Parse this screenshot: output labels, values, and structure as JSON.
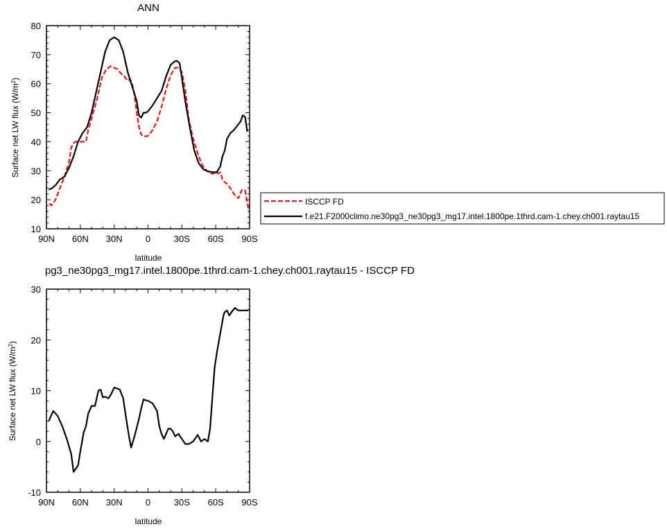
{
  "top_title": "ANN",
  "bottom_title": "pg3_ne30pg3_mg17.intel.1800pe.1thrd.cam-1.chey.ch001.raytau15 - ISCCP FD",
  "legend": {
    "obs_label": "ISCCP FD",
    "model_label": "f.e21.F2000climo.ne30pg3_ne30pg3_mg17.intel.1800pe.1thrd.cam-1.chey.ch001.raytau15"
  },
  "colors": {
    "obs": "#e8141a",
    "model": "#000000"
  },
  "chart_data": [
    {
      "type": "line",
      "title": "ANN",
      "xlabel": "latitude",
      "ylabel": "Surface net LW flux (W/m²)",
      "xlim": [
        90,
        -90
      ],
      "ylim": [
        10,
        80
      ],
      "xticks": [
        90,
        60,
        30,
        0,
        -30,
        -60,
        -90
      ],
      "xtick_labels": [
        "90N",
        "60N",
        "30N",
        "0",
        "30S",
        "60S",
        "90S"
      ],
      "yticks": [
        10,
        20,
        30,
        40,
        50,
        60,
        70,
        80
      ],
      "ytick_labels": [
        "10",
        "20",
        "30",
        "40",
        "50",
        "60",
        "70",
        "80"
      ],
      "legend_position": "right",
      "series": [
        {
          "name": "ISCCP FD",
          "color": "#e8141a",
          "dash": true,
          "x": [
            87.5,
            85.5,
            82,
            78,
            74,
            70,
            68,
            66,
            64,
            62,
            58,
            55,
            53,
            50,
            45,
            41,
            37,
            33,
            30,
            27,
            24,
            22,
            20,
            18,
            16,
            14,
            12,
            10,
            8,
            6,
            4,
            0,
            -4,
            -8,
            -12,
            -16,
            -20,
            -24,
            -27,
            -30,
            -33,
            -36,
            -40,
            -44,
            -48,
            -52,
            -56,
            -58,
            -60,
            -62,
            -64,
            -66,
            -68,
            -70,
            -73,
            -76,
            -80,
            -83,
            -86,
            -89
          ],
          "y": [
            18.7,
            18,
            20,
            24,
            28,
            33,
            38,
            39.5,
            40,
            40,
            40,
            40,
            44,
            48,
            55,
            62,
            65,
            66,
            65.5,
            65,
            63.5,
            63,
            62,
            61,
            61.5,
            60,
            56,
            50,
            45,
            42.5,
            41.8,
            42,
            44,
            47,
            52,
            58,
            63,
            65.5,
            65.5,
            64,
            58,
            48,
            41,
            36,
            32,
            30,
            29,
            29,
            29.5,
            29,
            29.5,
            27,
            26,
            25.5,
            24,
            22,
            20.5,
            23.3,
            23.3,
            16.8
          ]
        },
        {
          "name": "f.e21.F2000climo.ne30pg3_ne30pg3_mg17.intel.1800pe.1thrd.cam-1.chey.ch001.raytau15",
          "color": "#000000",
          "dash": false,
          "x": [
            88,
            85,
            82,
            78,
            74,
            70,
            66,
            62,
            58,
            54,
            50,
            46,
            42,
            38,
            34,
            30,
            26,
            22,
            18,
            14,
            10,
            8,
            6,
            4,
            2,
            0,
            -4,
            -8,
            -12,
            -16,
            -20,
            -24,
            -26,
            -28,
            -30,
            -33,
            -37,
            -41,
            -45,
            -49,
            -53,
            -57,
            -61,
            -64,
            -66,
            -68,
            -70,
            -73,
            -76,
            -79,
            -82,
            -84,
            -86,
            -88
          ],
          "y": [
            23.5,
            24,
            25,
            27,
            28,
            31,
            35,
            40,
            43,
            45,
            50,
            57,
            64,
            71,
            75,
            76,
            75,
            71,
            64,
            59,
            54,
            49,
            48.3,
            50,
            50,
            50.5,
            52.5,
            55,
            57.5,
            62.5,
            66.5,
            67.8,
            67.8,
            67,
            62,
            54,
            45,
            37,
            32.5,
            30.5,
            29.8,
            29.5,
            29.5,
            31.5,
            35,
            37,
            41,
            43,
            44,
            45.5,
            47,
            49.1,
            48.5,
            43.5
          ]
        }
      ]
    },
    {
      "type": "line",
      "title": "pg3_ne30pg3_mg17.intel.1800pe.1thrd.cam-1.chey.ch001.raytau15 - ISCCP FD",
      "xlabel": "latitude",
      "ylabel": "Surface net LW flux (W/m²)",
      "xlim": [
        90,
        -90
      ],
      "ylim": [
        -10,
        30
      ],
      "xticks": [
        90,
        60,
        30,
        0,
        -30,
        -60,
        -90
      ],
      "xtick_labels": [
        "90N",
        "60N",
        "30N",
        "0",
        "30S",
        "60S",
        "90S"
      ],
      "yticks": [
        -10,
        0,
        10,
        20,
        30
      ],
      "ytick_labels": [
        "-10",
        "0",
        "10",
        "20",
        "30"
      ],
      "series": [
        {
          "color": "#000000",
          "dash": false,
          "x": [
            88,
            86,
            84,
            80,
            76,
            72,
            70,
            68,
            66,
            62,
            60,
            57,
            55,
            53,
            50,
            47,
            44,
            42,
            40,
            38,
            35,
            33,
            30,
            27,
            25,
            22,
            20,
            17,
            15,
            12,
            8,
            6,
            4,
            2,
            0,
            -4,
            -8,
            -10,
            -12,
            -14,
            -16,
            -18,
            -20,
            -22,
            -24,
            -27,
            -30,
            -33,
            -36,
            -40,
            -44,
            -47,
            -50,
            -53,
            -55,
            -57,
            -59,
            -61,
            -63,
            -65,
            -67,
            -68,
            -70,
            -72,
            -74,
            -77,
            -80,
            -83,
            -85,
            -87,
            -89
          ],
          "y": [
            4,
            5,
            6,
            5,
            3,
            0.5,
            -1,
            -2.5,
            -6,
            -4.7,
            -2,
            1.8,
            3,
            5.5,
            7,
            7,
            10,
            10.2,
            8.7,
            8.8,
            8.5,
            9.2,
            10.6,
            10.4,
            10.2,
            8.5,
            5.5,
            1.2,
            -1.2,
            1,
            4.5,
            6.5,
            8.3,
            8.1,
            8,
            7.5,
            6,
            3,
            1.5,
            0.5,
            1.5,
            2.5,
            2.5,
            2,
            1,
            1.5,
            0.5,
            -0.5,
            -0.5,
            0,
            1.3,
            0,
            0.5,
            0,
            2.5,
            8.7,
            14.5,
            17.5,
            20,
            22.5,
            25,
            25.5,
            25.8,
            24.8,
            25.5,
            26.3,
            25.8,
            25.8,
            25.8,
            25.8,
            25.8
          ]
        }
      ]
    }
  ]
}
